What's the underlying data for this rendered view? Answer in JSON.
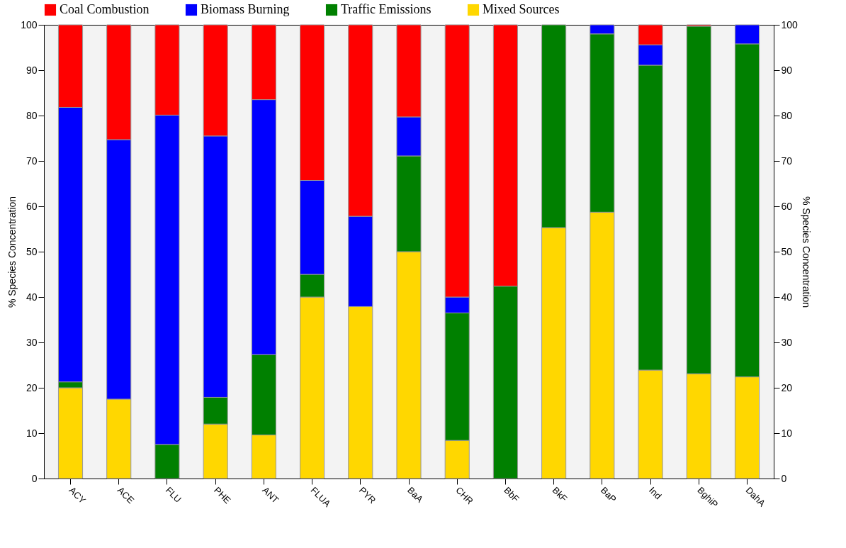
{
  "chart_data": {
    "type": "bar",
    "stacked": true,
    "ylabel": "% Species Concentration",
    "y2label": "% Species Concentration",
    "categories": [
      "ACY",
      "ACE",
      "FLU",
      "PHE",
      "ANT",
      "FLUA",
      "PYR",
      "BaA",
      "CHR",
      "BbF",
      "BkF",
      "BaP",
      "Ind",
      "BghiP",
      "DahA"
    ],
    "series": [
      {
        "name": "Mixed Sources",
        "color": "#ffd700",
        "values": [
          20,
          17.5,
          0,
          12,
          9.6,
          40,
          37.9,
          50,
          8.4,
          0,
          55.3,
          58.7,
          23.9,
          23.1,
          22.4
        ]
      },
      {
        "name": "Traffic Emissions",
        "color": "#008000",
        "values": [
          1.3,
          0,
          7.5,
          5.9,
          17.7,
          5,
          0,
          21.1,
          28.1,
          42.4,
          44.7,
          39.3,
          67.2,
          76.6,
          73.4
        ]
      },
      {
        "name": "Biomass Burning",
        "color": "#0000ff",
        "values": [
          60.5,
          57.2,
          72.6,
          57.6,
          56.2,
          20.7,
          19.9,
          8.6,
          3.5,
          0,
          0,
          2,
          4.5,
          0,
          4.2
        ]
      },
      {
        "name": "Coal Combustion",
        "color": "#ff0000",
        "values": [
          18.2,
          25.3,
          19.9,
          24.5,
          16.5,
          34.3,
          42.2,
          20.3,
          60,
          57.6,
          0,
          0,
          4.4,
          0.3,
          0
        ]
      }
    ],
    "ylim": [
      0,
      100
    ],
    "yticks": [
      0,
      10,
      20,
      30,
      40,
      50,
      60,
      70,
      80,
      90,
      100
    ],
    "y2lim": [
      0,
      100
    ],
    "y2ticks": [
      0,
      10,
      20,
      30,
      40,
      50,
      60,
      70,
      80,
      90,
      100
    ],
    "grid": false,
    "legend": "top"
  }
}
